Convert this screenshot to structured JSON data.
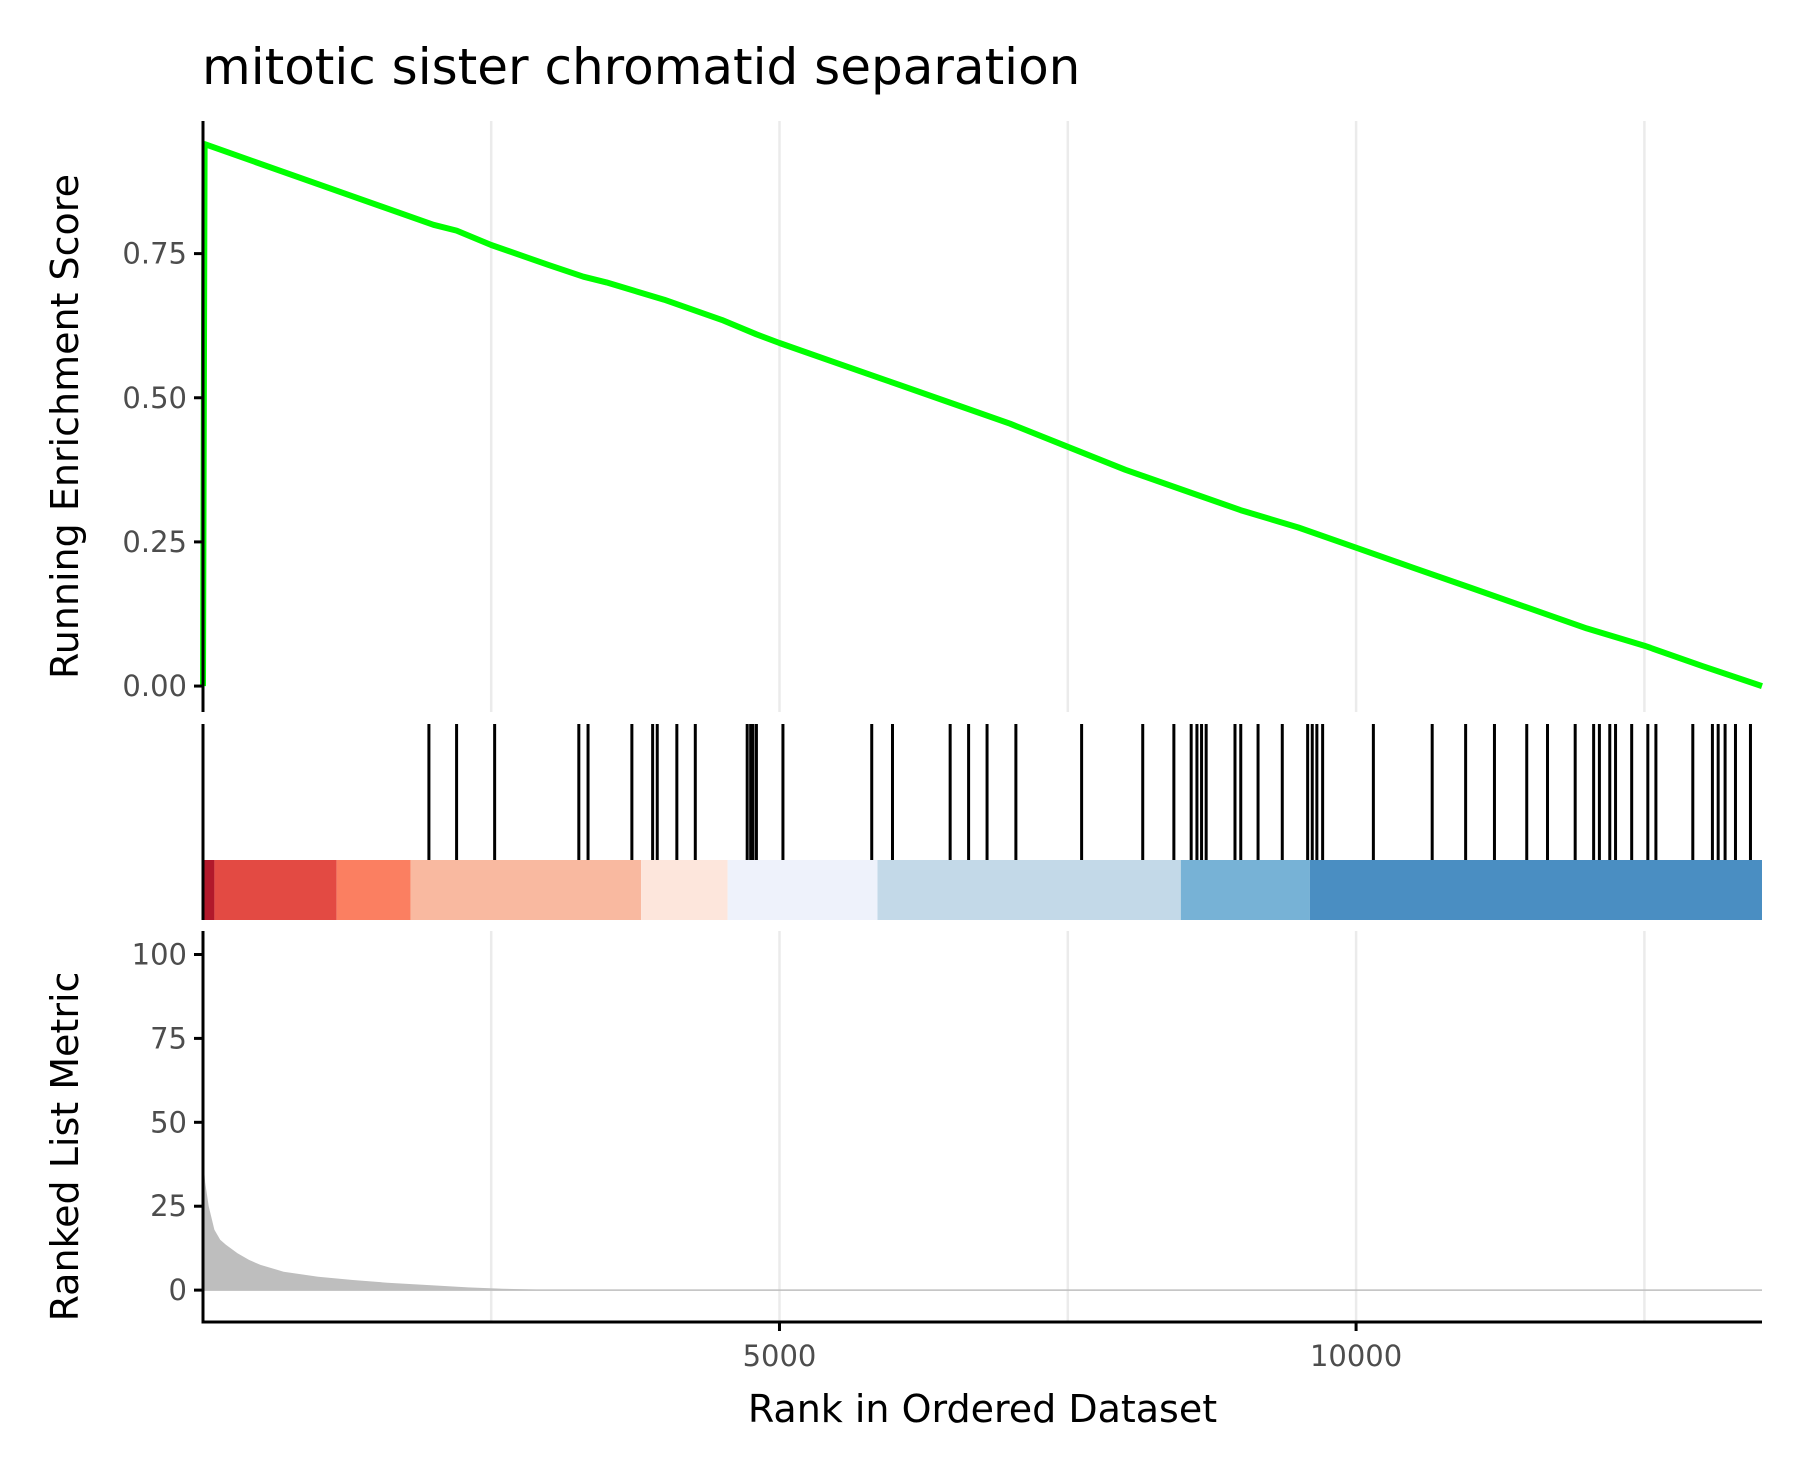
{
  "chart_data": {
    "type": "line",
    "title": "mitotic sister chromatid separation",
    "xlabel": "Rank in Ordered Dataset",
    "xlim": [
      1,
      13520
    ],
    "x_ticks": [
      {
        "value": 5000,
        "label": "5000"
      },
      {
        "value": 10000,
        "label": "10000"
      }
    ],
    "x_grid": [
      2500,
      5000,
      7500,
      10000,
      12500
    ],
    "colors": {
      "line": "#00ff00",
      "hits": "#000000",
      "metric_fill": "#bebebe",
      "grid": "#ebebeb"
    },
    "panels": {
      "running_es": {
        "ylabel": "Running Enrichment Score",
        "ylim": [
          -0.045,
          0.98
        ],
        "y_ticks": [
          {
            "value": 0,
            "label": "0.00"
          },
          {
            "value": 0.25,
            "label": "0.25"
          },
          {
            "value": 0.5,
            "label": "0.50"
          },
          {
            "value": 0.75,
            "label": "0.75"
          }
        ],
        "series": [
          {
            "x": [
              1,
              15,
              2000,
              2200,
              2500,
              3000,
              3300,
              3500,
              4000,
              4500,
              4800,
              5000,
              5500,
              6000,
              6500,
              7000,
              7500,
              8000,
              8500,
              9000,
              9500,
              10000,
              10500,
              11000,
              11500,
              12000,
              12500,
              13000,
              13520
            ],
            "y": [
              0.0,
              0.94,
              0.8,
              0.79,
              0.765,
              0.73,
              0.71,
              0.7,
              0.67,
              0.635,
              0.61,
              0.595,
              0.56,
              0.525,
              0.49,
              0.455,
              0.415,
              0.375,
              0.34,
              0.305,
              0.275,
              0.24,
              0.205,
              0.17,
              0.135,
              0.1,
              0.07,
              0.035,
              0.0
            ]
          }
        ]
      },
      "gene_hits": {
        "positions": [
          1960,
          2200,
          2530,
          3260,
          3340,
          3720,
          3900,
          3940,
          4110,
          4270,
          4720,
          4750,
          4770,
          4800,
          5030,
          5800,
          5980,
          6480,
          6640,
          6800,
          7050,
          7620,
          8150,
          8420,
          8570,
          8620,
          8660,
          8700,
          8950,
          9000,
          9150,
          9360,
          9580,
          9620,
          9660,
          9710,
          10150,
          10660,
          10950,
          11200,
          11480,
          11660,
          11900,
          12060,
          12110,
          12200,
          12250,
          12390,
          12530,
          12600,
          12920,
          13090,
          13140,
          13200,
          13290,
          13420
        ]
      },
      "color_bar": {
        "segments": [
          {
            "from": 1,
            "to": 100,
            "color": "#b2182b"
          },
          {
            "from": 100,
            "to": 1160,
            "color": "#e34a43"
          },
          {
            "from": 1160,
            "to": 1800,
            "color": "#fb7f61"
          },
          {
            "from": 1800,
            "to": 3800,
            "color": "#f9b9a0"
          },
          {
            "from": 3800,
            "to": 4550,
            "color": "#fde6dc"
          },
          {
            "from": 4550,
            "to": 5850,
            "color": "#eef2fb"
          },
          {
            "from": 5850,
            "to": 8480,
            "color": "#c3d9e8"
          },
          {
            "from": 8480,
            "to": 9600,
            "color": "#77b2d6"
          },
          {
            "from": 9600,
            "to": 13520,
            "color": "#4a8ec2"
          }
        ]
      },
      "ranked_metric": {
        "ylabel": "Ranked List Metric",
        "ylim": [
          -9.5,
          107
        ],
        "y_ticks": [
          {
            "value": 0,
            "label": "0"
          },
          {
            "value": 25,
            "label": "25"
          },
          {
            "value": 50,
            "label": "50"
          },
          {
            "value": 75,
            "label": "75"
          },
          {
            "value": 100,
            "label": "100"
          }
        ],
        "x": [
          1,
          5,
          20,
          50,
          100,
          150,
          200,
          300,
          400,
          500,
          700,
          1000,
          1300,
          1600,
          2000,
          2300,
          2600,
          3000,
          13520
        ],
        "values": [
          42,
          38,
          32,
          25,
          18,
          15,
          13.5,
          11,
          9,
          7.5,
          5.5,
          4,
          3,
          2.2,
          1.4,
          0.8,
          0.4,
          0.1,
          0
        ]
      }
    }
  }
}
